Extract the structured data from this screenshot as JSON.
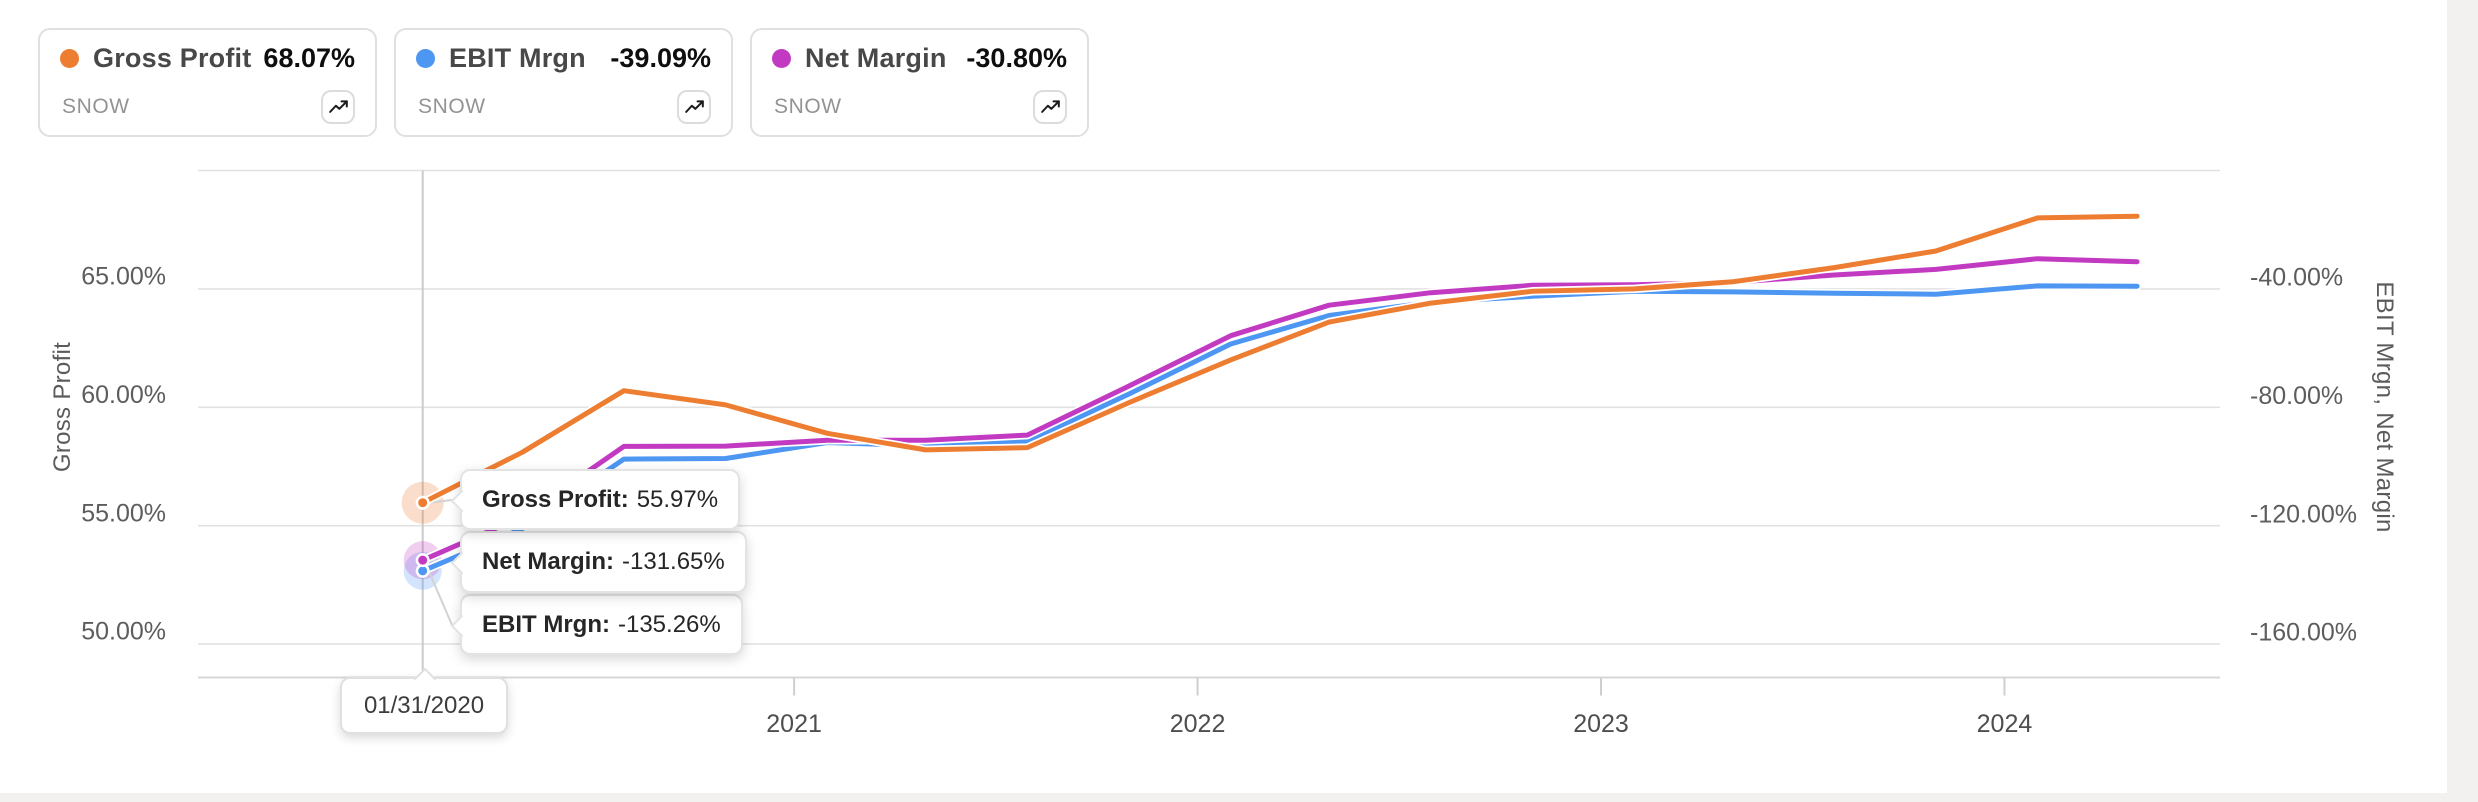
{
  "page": {
    "background": "#f2f1ef",
    "surface": "#ffffff"
  },
  "legend_cards": [
    {
      "label": "Gross Profit",
      "value": "68.07%",
      "ticker": "SNOW",
      "color": "#ED7D31"
    },
    {
      "label": "EBIT Mrgn",
      "value": "-39.09%",
      "ticker": "SNOW",
      "color": "#4D96F2"
    },
    {
      "label": "Net Margin",
      "value": "-30.80%",
      "ticker": "SNOW",
      "color": "#C23AC2"
    }
  ],
  "tooltip": {
    "date": "01/31/2020",
    "point_index": 0,
    "items": [
      {
        "label": "Gross Profit:",
        "value": "55.97%",
        "series": "Gross Profit"
      },
      {
        "label": "Net Margin:",
        "value": "-131.65%",
        "series": "Net Margin"
      },
      {
        "label": "EBIT Mrgn:",
        "value": "-135.26%",
        "series": "EBIT Mrgn"
      }
    ]
  },
  "chart_data": {
    "type": "line",
    "x_dates": [
      "2020-01-31",
      "2020-04-30",
      "2020-07-31",
      "2020-10-31",
      "2021-01-31",
      "2021-04-30",
      "2021-07-31",
      "2021-10-31",
      "2022-01-31",
      "2022-04-30",
      "2022-07-31",
      "2022-10-31",
      "2023-01-31",
      "2023-04-30",
      "2023-07-31",
      "2023-10-31",
      "2024-01-31",
      "2024-04-30"
    ],
    "series": [
      {
        "name": "Gross Profit",
        "axis": "left",
        "color": "#ED7D31",
        "ticker": "SNOW",
        "values": [
          55.97,
          58.1,
          60.7,
          60.1,
          58.9,
          58.2,
          58.3,
          60.2,
          62.0,
          63.6,
          64.4,
          64.9,
          65.0,
          65.3,
          65.9,
          66.6,
          68.0,
          68.07
        ]
      },
      {
        "name": "EBIT Mrgn",
        "axis": "right",
        "color": "#4D96F2",
        "ticker": "SNOW",
        "values": [
          -135.26,
          -121.0,
          -97.5,
          -97.3,
          -91.9,
          -93.0,
          -91.5,
          -75.5,
          -58.6,
          -49.0,
          -44.5,
          -42.5,
          -40.8,
          -41.0,
          -41.5,
          -41.8,
          -39.0,
          -39.09
        ]
      },
      {
        "name": "Net Margin",
        "axis": "right",
        "color": "#C23AC2",
        "ticker": "SNOW",
        "values": [
          -131.65,
          -117.0,
          -93.2,
          -93.1,
          -91.1,
          -91.1,
          -89.4,
          -72.8,
          -55.8,
          -45.5,
          -41.3,
          -38.8,
          -38.6,
          -37.8,
          -35.3,
          -33.4,
          -29.8,
          -30.8
        ]
      }
    ],
    "left_axis": {
      "title": "Gross Profit",
      "grid_values": [
        70,
        65,
        60,
        55,
        50
      ],
      "ticks": [
        {
          "label": "65.00%",
          "value": 65
        },
        {
          "label": "60.00%",
          "value": 60
        },
        {
          "label": "55.00%",
          "value": 55
        },
        {
          "label": "50.00%",
          "value": 50
        }
      ],
      "range_top": 70,
      "units_per_grid": 5
    },
    "right_axis": {
      "title": "EBIT Mrgn, Net Margin",
      "ticks": [
        {
          "label": "-40.00%",
          "value": -40
        },
        {
          "label": "-80.00%",
          "value": -80
        },
        {
          "label": "-120.00%",
          "value": -120
        },
        {
          "label": "-160.00%",
          "value": -160
        }
      ],
      "range_top": 0,
      "units_per_grid": 40
    },
    "x_axis": {
      "ticks": [
        {
          "label": "2021",
          "date": "2021-01-01"
        },
        {
          "label": "2022",
          "date": "2022-01-01"
        },
        {
          "label": "2023",
          "date": "2023-01-01"
        },
        {
          "label": "2024",
          "date": "2024-01-01"
        }
      ]
    },
    "legend_position": "top-left",
    "grid": true,
    "colors": {
      "gridline": "#e2e2e2",
      "axis_line": "#d7d7d7",
      "crosshair": "#cbcbcb",
      "tick_text": "#5d5d5d",
      "year_text": "#4e4e4e",
      "connector": "#d2d2d2"
    }
  }
}
